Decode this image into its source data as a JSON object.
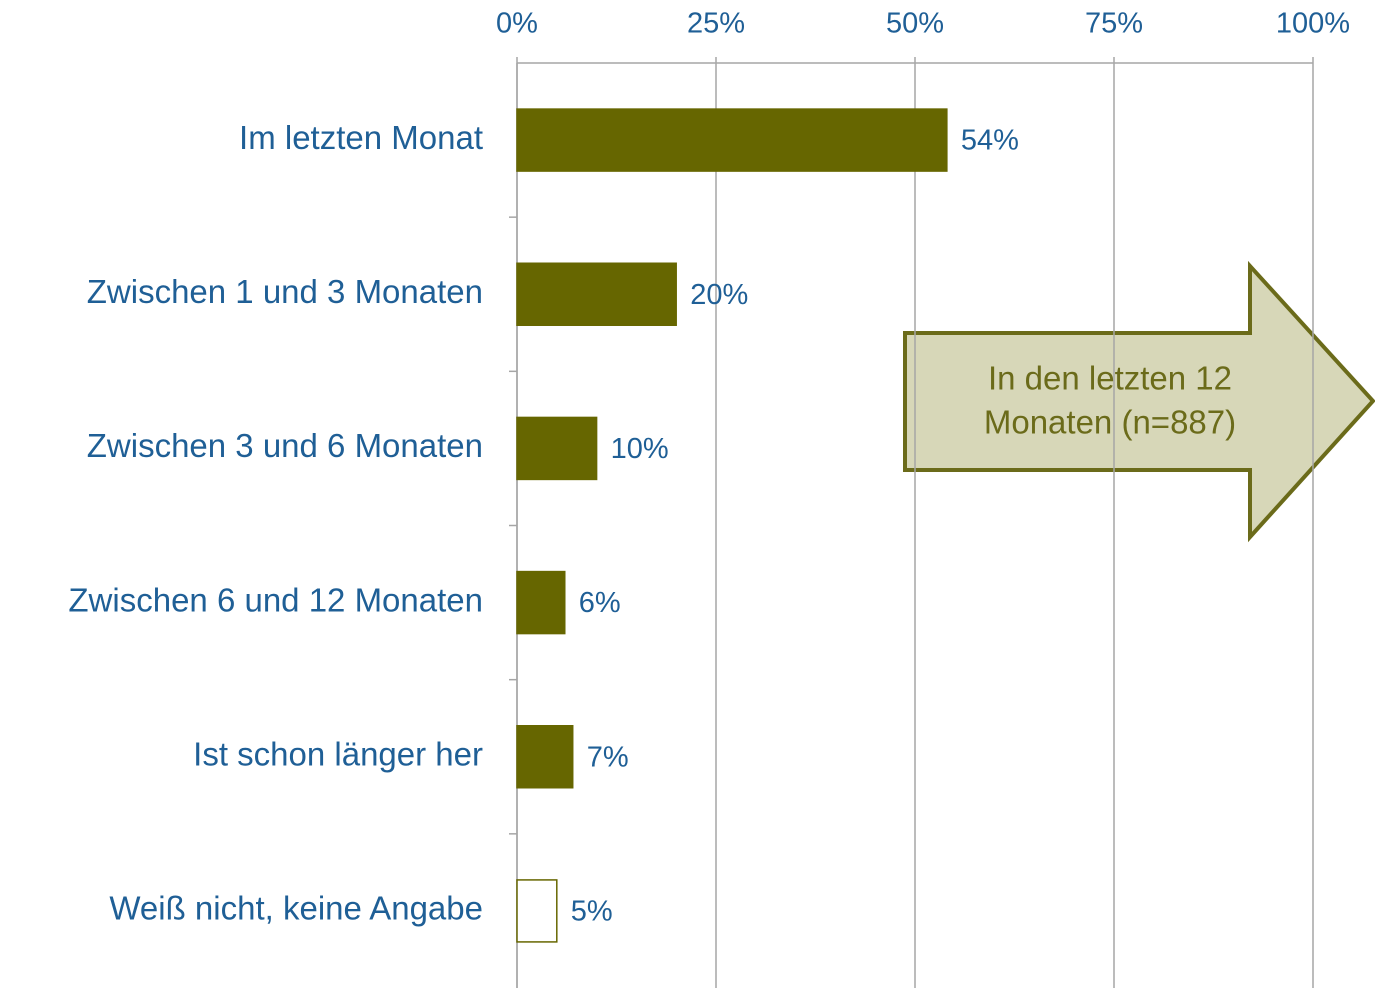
{
  "chart_data": {
    "type": "hbar",
    "categories": [
      "Im letzten Monat",
      "Zwischen 1 und 3 Monaten",
      "Zwischen 3 und 6 Monaten",
      "Zwischen 6 und 12 Monaten",
      "Ist schon länger her",
      "Weiß nicht, keine Angabe"
    ],
    "values": [
      54,
      20,
      10,
      6,
      7,
      5
    ],
    "value_labels": [
      "54%",
      "20%",
      "10%",
      "6%",
      "7%",
      "5%"
    ],
    "colors": [
      "#666600",
      "#666600",
      "#666600",
      "#666600",
      "#666600",
      "#ffffff"
    ],
    "edge_color": "#666600",
    "xlim": [
      0,
      100
    ],
    "xticks": [
      {
        "value": 0,
        "label": "0%"
      },
      {
        "value": 25,
        "label": "25%"
      },
      {
        "value": 50,
        "label": "50%"
      },
      {
        "value": 75,
        "label": "75%"
      },
      {
        "value": 100,
        "label": "100%"
      }
    ],
    "grid": true,
    "annotation_lines": [
      "In den letzten 12",
      "Monaten (n=887)"
    ]
  }
}
